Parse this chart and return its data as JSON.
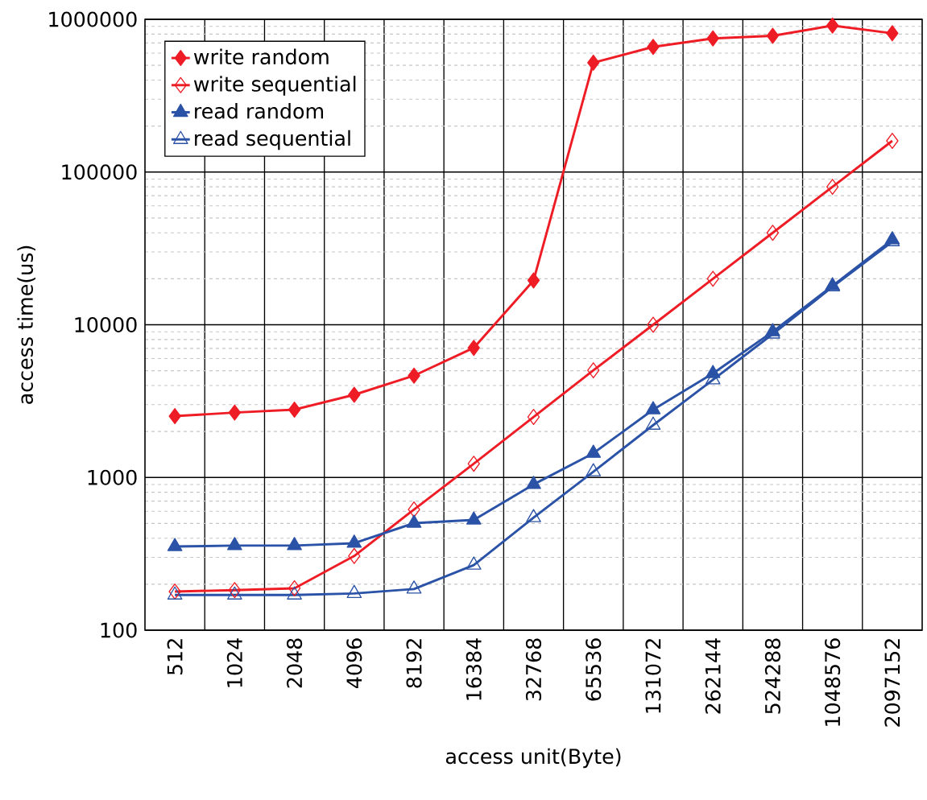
{
  "chart_data": {
    "type": "line",
    "xlabel": "access unit(Byte)",
    "ylabel": "access time(us)",
    "categories": [
      "512",
      "1024",
      "2048",
      "4096",
      "8192",
      "16384",
      "32768",
      "65536",
      "131072",
      "262144",
      "524288",
      "1048576",
      "2097152"
    ],
    "log": "y",
    "ylim": [
      100,
      1000000
    ],
    "yticks": [
      100,
      1000,
      10000,
      100000,
      1000000
    ],
    "grid": true,
    "legend": "top left",
    "series": [
      {
        "name": "write random",
        "color": "#ee1c25",
        "marker": "diamond",
        "values": [
          2520,
          2660,
          2780,
          3480,
          4640,
          7060,
          19500,
          520000,
          660000,
          750000,
          780000,
          910000,
          810000
        ]
      },
      {
        "name": "write sequential",
        "color": "#ee1c25",
        "marker": "diamond",
        "values": [
          179,
          183,
          188,
          306,
          617,
          1230,
          2490,
          5030,
          10000,
          20000,
          40000,
          80000,
          160000
        ]
      },
      {
        "name": "read random",
        "color": "#2a52a6",
        "marker": "triangle",
        "values": [
          353,
          358,
          358,
          371,
          502,
          527,
          900,
          1440,
          2780,
          4800,
          9000,
          18000,
          36000
        ]
      },
      {
        "name": "read sequential",
        "color": "#2a52a6",
        "marker": "triangle",
        "values": [
          170,
          170,
          170,
          174,
          186,
          267,
          546,
          1090,
          2200,
          4360,
          8700,
          17700,
          35000
        ]
      }
    ]
  }
}
